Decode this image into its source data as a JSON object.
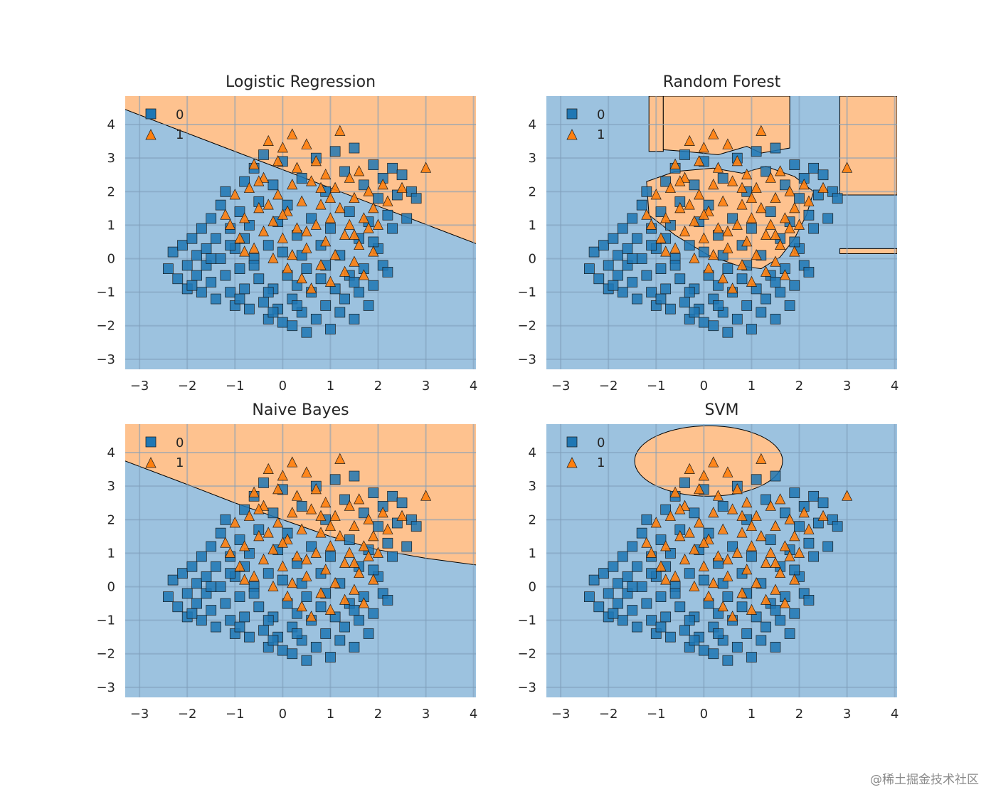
{
  "figure": {
    "watermark": "@稀土掘金技术社区",
    "colors": {
      "class0_region": "#9cc2df",
      "class1_region": "#fec28f",
      "class0_marker": "#1f77b4",
      "class1_marker": "#ff7f0e",
      "grid": "#7f9fb9",
      "boundary": "#000000"
    }
  },
  "chart_data": [
    {
      "type": "scatter",
      "title": "Logistic Regression",
      "xlim": [
        -3.3,
        4.05
      ],
      "ylim": [
        -3.3,
        4.85
      ],
      "xticks": [
        -3,
        -2,
        -1,
        0,
        1,
        2,
        3,
        4
      ],
      "yticks": [
        -3,
        -2,
        -1,
        0,
        1,
        2,
        3,
        4
      ],
      "tick_labels_x": [
        "−3",
        "−2",
        "−1",
        "0",
        "1",
        "2",
        "3",
        "4"
      ],
      "tick_labels_y": [
        "−3",
        "−2",
        "−1",
        "0",
        "1",
        "2",
        "3",
        "4"
      ],
      "legend": {
        "position": "top-left",
        "entries": [
          "0",
          "1"
        ]
      },
      "decision_region": {
        "kind": "halfplane",
        "line": [
          [
            -3.3,
            4.45
          ],
          [
            4.05,
            0.45
          ]
        ]
      }
    },
    {
      "type": "scatter",
      "title": "Random Forest",
      "xlim": [
        -3.3,
        4.05
      ],
      "ylim": [
        -3.3,
        4.85
      ],
      "xticks": [
        -3,
        -2,
        -1,
        0,
        1,
        2,
        3,
        4
      ],
      "yticks": [
        -3,
        -2,
        -1,
        0,
        1,
        2,
        3,
        4
      ],
      "tick_labels_x": [
        "−3",
        "−2",
        "−1",
        "0",
        "1",
        "2",
        "3",
        "4"
      ],
      "tick_labels_y": [
        "−3",
        "−2",
        "−1",
        "0",
        "1",
        "2",
        "3",
        "4"
      ],
      "legend": {
        "position": "top-left",
        "entries": [
          "0",
          "1"
        ]
      },
      "decision_region": {
        "kind": "polygons",
        "polygons": [
          [
            [
              -1.15,
              4.85
            ],
            [
              -0.85,
              4.85
            ],
            [
              -0.85,
              3.2
            ],
            [
              -1.15,
              3.2
            ]
          ],
          [
            [
              -0.85,
              4.85
            ],
            [
              1.8,
              4.85
            ],
            [
              1.8,
              3.3
            ],
            [
              1.2,
              3.15
            ],
            [
              0.9,
              3.35
            ],
            [
              0.3,
              3.1
            ],
            [
              -0.4,
              3.2
            ],
            [
              -0.85,
              3.25
            ]
          ],
          [
            [
              2.85,
              4.85
            ],
            [
              4.05,
              4.85
            ],
            [
              4.05,
              1.9
            ],
            [
              2.85,
              1.9
            ]
          ],
          [
            [
              2.85,
              0.3
            ],
            [
              4.05,
              0.3
            ],
            [
              4.05,
              0.15
            ],
            [
              2.85,
              0.15
            ]
          ],
          [
            [
              -1.2,
              2.3
            ],
            [
              -0.6,
              2.6
            ],
            [
              0.2,
              2.7
            ],
            [
              0.8,
              2.55
            ],
            [
              1.3,
              2.75
            ],
            [
              1.9,
              2.45
            ],
            [
              2.3,
              2.0
            ],
            [
              2.15,
              1.3
            ],
            [
              1.9,
              0.6
            ],
            [
              1.6,
              0.05
            ],
            [
              1.2,
              -0.3
            ],
            [
              0.7,
              -0.2
            ],
            [
              0.1,
              0.1
            ],
            [
              -0.6,
              0.7
            ],
            [
              -1.15,
              1.3
            ]
          ]
        ]
      }
    },
    {
      "type": "scatter",
      "title": "Naive Bayes",
      "xlim": [
        -3.3,
        4.05
      ],
      "ylim": [
        -3.3,
        4.85
      ],
      "xticks": [
        -3,
        -2,
        -1,
        0,
        1,
        2,
        3,
        4
      ],
      "yticks": [
        -3,
        -2,
        -1,
        0,
        1,
        2,
        3,
        4
      ],
      "tick_labels_x": [
        "−3",
        "−2",
        "−1",
        "0",
        "1",
        "2",
        "3",
        "4"
      ],
      "tick_labels_y": [
        "−3",
        "−2",
        "−1",
        "0",
        "1",
        "2",
        "3",
        "4"
      ],
      "legend": {
        "position": "top-left",
        "entries": [
          "0",
          "1"
        ]
      },
      "decision_region": {
        "kind": "curve",
        "points": [
          [
            -3.3,
            3.75
          ],
          [
            -2.0,
            3.05
          ],
          [
            -1.0,
            2.5
          ],
          [
            0.0,
            2.0
          ],
          [
            1.0,
            1.5
          ],
          [
            2.0,
            1.1
          ],
          [
            3.0,
            0.85
          ],
          [
            4.05,
            0.65
          ]
        ]
      }
    },
    {
      "type": "scatter",
      "title": "SVM",
      "xlim": [
        -3.3,
        4.05
      ],
      "ylim": [
        -3.3,
        4.85
      ],
      "xticks": [
        -3,
        -2,
        -1,
        0,
        1,
        2,
        3,
        4
      ],
      "yticks": [
        -3,
        -2,
        -1,
        0,
        1,
        2,
        3,
        4
      ],
      "tick_labels_x": [
        "−3",
        "−2",
        "−1",
        "0",
        "1",
        "2",
        "3",
        "4"
      ],
      "tick_labels_y": [
        "−3",
        "−2",
        "−1",
        "0",
        "1",
        "2",
        "3",
        "4"
      ],
      "legend": {
        "position": "top-left",
        "entries": [
          "0",
          "1"
        ]
      },
      "decision_region": {
        "kind": "ellipse",
        "center": [
          0.1,
          3.75
        ],
        "radii": [
          1.55,
          1.05
        ]
      }
    }
  ],
  "scatter_data": {
    "class0": [
      [
        -2.4,
        -0.3
      ],
      [
        -2.3,
        0.2
      ],
      [
        -2.2,
        -0.6
      ],
      [
        -2.1,
        0.4
      ],
      [
        -2.0,
        -0.2
      ],
      [
        -2.0,
        -0.9
      ],
      [
        -1.9,
        0.6
      ],
      [
        -1.8,
        0.1
      ],
      [
        -1.8,
        -0.5
      ],
      [
        -1.7,
        0.9
      ],
      [
        -1.7,
        -1.0
      ],
      [
        -1.6,
        0.3
      ],
      [
        -1.6,
        -0.2
      ],
      [
        -1.5,
        1.2
      ],
      [
        -1.5,
        -0.7
      ],
      [
        -1.4,
        0.6
      ],
      [
        -1.4,
        -1.2
      ],
      [
        -1.3,
        1.6
      ],
      [
        -1.3,
        0.0
      ],
      [
        -1.2,
        -0.5
      ],
      [
        -1.2,
        2.0
      ],
      [
        -1.1,
        0.9
      ],
      [
        -1.1,
        -1.0
      ],
      [
        -1.0,
        0.3
      ],
      [
        -1.0,
        -1.4
      ],
      [
        -0.9,
        1.4
      ],
      [
        -0.9,
        -0.3
      ],
      [
        -0.8,
        2.3
      ],
      [
        -0.8,
        0.6
      ],
      [
        -0.8,
        -0.9
      ],
      [
        -0.7,
        -1.5
      ],
      [
        -0.7,
        1.0
      ],
      [
        -0.6,
        0.0
      ],
      [
        -0.6,
        2.7
      ],
      [
        -0.5,
        -0.6
      ],
      [
        -0.5,
        1.7
      ],
      [
        -0.4,
        -1.3
      ],
      [
        -0.4,
        3.1
      ],
      [
        -0.3,
        0.4
      ],
      [
        -0.3,
        -1.8
      ],
      [
        -0.2,
        2.2
      ],
      [
        -0.2,
        -0.9
      ],
      [
        -0.1,
        1.1
      ],
      [
        -0.1,
        -1.5
      ],
      [
        0.0,
        0.2
      ],
      [
        0.0,
        -1.9
      ],
      [
        0.0,
        2.9
      ],
      [
        0.1,
        -0.5
      ],
      [
        0.1,
        1.6
      ],
      [
        0.2,
        -1.2
      ],
      [
        0.2,
        -2.0
      ],
      [
        0.3,
        0.7
      ],
      [
        0.3,
        -0.8
      ],
      [
        0.4,
        2.4
      ],
      [
        0.4,
        -1.6
      ],
      [
        0.5,
        -0.3
      ],
      [
        0.5,
        -2.2
      ],
      [
        0.6,
        1.2
      ],
      [
        0.6,
        -1.0
      ],
      [
        0.7,
        3.0
      ],
      [
        0.7,
        -1.8
      ],
      [
        0.8,
        0.4
      ],
      [
        0.8,
        -0.6
      ],
      [
        0.9,
        -1.4
      ],
      [
        0.9,
        2.0
      ],
      [
        1.0,
        -2.1
      ],
      [
        1.0,
        0.9
      ],
      [
        1.1,
        -0.9
      ],
      [
        1.1,
        3.2
      ],
      [
        1.2,
        -1.6
      ],
      [
        1.2,
        0.1
      ],
      [
        1.3,
        2.6
      ],
      [
        1.3,
        -1.2
      ],
      [
        1.4,
        -0.5
      ],
      [
        1.4,
        1.4
      ],
      [
        1.5,
        -1.8
      ],
      [
        1.5,
        3.3
      ],
      [
        1.6,
        -1.0
      ],
      [
        1.6,
        0.6
      ],
      [
        1.7,
        2.2
      ],
      [
        1.7,
        -0.3
      ],
      [
        1.8,
        -1.4
      ],
      [
        1.8,
        1.1
      ],
      [
        1.9,
        2.8
      ],
      [
        1.9,
        -0.8
      ],
      [
        2.0,
        0.3
      ],
      [
        2.0,
        1.8
      ],
      [
        2.1,
        2.4
      ],
      [
        2.1,
        -0.2
      ],
      [
        2.2,
        1.3
      ],
      [
        2.3,
        2.7
      ],
      [
        2.3,
        0.9
      ],
      [
        2.4,
        1.9
      ],
      [
        2.5,
        2.5
      ],
      [
        2.6,
        1.2
      ],
      [
        2.7,
        2.0
      ],
      [
        2.8,
        1.8
      ],
      [
        -1.9,
        -0.8
      ],
      [
        -1.5,
        0.0
      ],
      [
        -0.9,
        -1.2
      ],
      [
        -0.3,
        -1.0
      ],
      [
        0.3,
        -1.4
      ],
      [
        0.9,
        -0.2
      ],
      [
        1.5,
        -0.7
      ],
      [
        -0.6,
        -0.2
      ],
      [
        0.4,
        0.1
      ],
      [
        -1.1,
        0.4
      ],
      [
        1.9,
        0.5
      ],
      [
        2.2,
        -0.4
      ],
      [
        -0.2,
        -1.6
      ]
    ],
    "class1": [
      [
        -1.2,
        1.3
      ],
      [
        -1.0,
        1.9
      ],
      [
        -0.9,
        0.6
      ],
      [
        -0.8,
        1.2
      ],
      [
        -0.7,
        2.1
      ],
      [
        -0.6,
        0.3
      ],
      [
        -0.6,
        2.8
      ],
      [
        -0.5,
        1.5
      ],
      [
        -0.4,
        0.8
      ],
      [
        -0.4,
        2.4
      ],
      [
        -0.3,
        3.5
      ],
      [
        -0.2,
        1.1
      ],
      [
        -0.2,
        0.0
      ],
      [
        -0.1,
        1.9
      ],
      [
        -0.1,
        2.9
      ],
      [
        0.0,
        0.6
      ],
      [
        0.0,
        3.3
      ],
      [
        0.1,
        1.4
      ],
      [
        0.1,
        -0.3
      ],
      [
        0.2,
        2.2
      ],
      [
        0.2,
        3.7
      ],
      [
        0.3,
        0.9
      ],
      [
        0.3,
        2.7
      ],
      [
        0.4,
        -0.6
      ],
      [
        0.4,
        1.7
      ],
      [
        0.5,
        3.4
      ],
      [
        0.5,
        0.3
      ],
      [
        0.6,
        2.3
      ],
      [
        0.6,
        -0.9
      ],
      [
        0.7,
        1.0
      ],
      [
        0.7,
        2.9
      ],
      [
        0.8,
        -0.2
      ],
      [
        0.8,
        1.6
      ],
      [
        0.9,
        0.5
      ],
      [
        0.9,
        2.5
      ],
      [
        1.0,
        -0.7
      ],
      [
        1.0,
        1.2
      ],
      [
        1.1,
        2.1
      ],
      [
        1.1,
        0.1
      ],
      [
        1.2,
        3.8
      ],
      [
        1.2,
        1.5
      ],
      [
        1.3,
        -0.4
      ],
      [
        1.3,
        0.7
      ],
      [
        1.4,
        2.4
      ],
      [
        1.4,
        1.0
      ],
      [
        1.5,
        -0.1
      ],
      [
        1.5,
        1.8
      ],
      [
        1.6,
        0.4
      ],
      [
        1.6,
        2.6
      ],
      [
        1.7,
        1.2
      ],
      [
        1.7,
        -0.5
      ],
      [
        1.8,
        0.9
      ],
      [
        1.8,
        2.0
      ],
      [
        1.9,
        1.5
      ],
      [
        1.9,
        0.2
      ],
      [
        2.0,
        1.0
      ],
      [
        2.1,
        2.2
      ],
      [
        2.2,
        1.7
      ],
      [
        2.5,
        2.1
      ],
      [
        3.0,
        2.7
      ],
      [
        -1.1,
        1.0
      ],
      [
        -0.8,
        0.2
      ],
      [
        -0.5,
        2.3
      ],
      [
        0.0,
        1.3
      ],
      [
        0.5,
        0.8
      ],
      [
        1.0,
        1.8
      ],
      [
        1.5,
        0.7
      ],
      [
        0.2,
        0.1
      ],
      [
        0.8,
        2.1
      ],
      [
        -0.3,
        1.6
      ]
    ]
  }
}
